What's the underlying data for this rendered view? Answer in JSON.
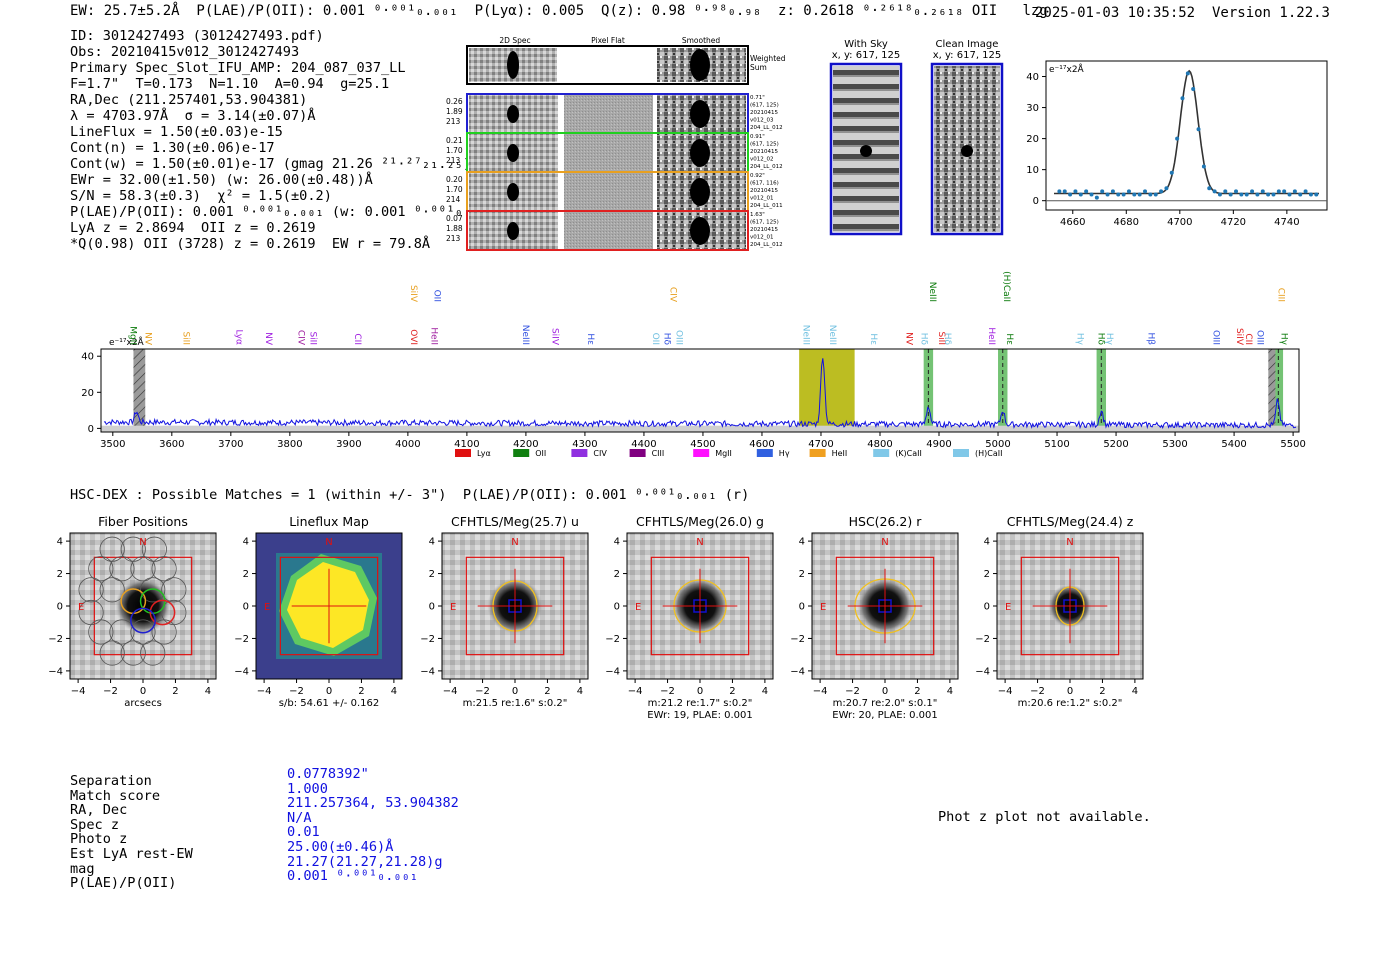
{
  "header": {
    "left": "EW: 25.7±5.2Å  P(LAE)/P(OII): 0.001 ⁰·⁰⁰¹₀.₀₀₁  P(Lyα): 0.005  Q(z): 0.98 ⁰·⁹⁸₀.₉₈  z: 0.2618 ⁰·²⁶¹⁸₀.₂₆₁₈ OII   lzg",
    "datetime": "2025-01-03 10:35:52",
    "version": "Version 1.22.3"
  },
  "info": {
    "lines": [
      "ID: 3012427493 (3012427493.pdf)",
      "Obs: 20210415v012_3012427493",
      "Primary Spec_Slot_IFU_AMP: 204_087_037_LL",
      "F=1.7\"  T=0.173  N=1.10  A=0.94  g=25.1",
      "RA,Dec (211.257401,53.904381)",
      "λ = 4703.97Å  σ = 3.14(±0.07)Å",
      "LineFlux = 1.50(±0.03)e-15",
      "Cont(n) = 1.30(±0.06)e-17",
      "Cont(w) = 1.50(±0.01)e-17 (gmag 21.26 ²¹·²⁷₂₁.₂₅)",
      "EWr = 32.00(±1.50) (w: 26.00(±0.48))Å",
      "S/N = 58.3(±0.3)  χ² = 1.5(±0.2)",
      "P(LAE)/P(OII): 0.001 ⁰·⁰⁰¹₀.₀₀₁ (w: 0.001 ⁰·⁰⁰¹₀.₀₀₁)",
      "LyA z = 2.8694  OII z = 0.2619",
      "*Q(0.98) OII (3728) z = 0.2619  EW r = 79.8Å"
    ]
  },
  "cutouts": {
    "headers": [
      "2D Spec",
      "Pixel Flat",
      "Smoothed"
    ],
    "weighted_label": "Weighted Sum",
    "rows": [
      {
        "color": "#2020d0",
        "left": [
          "0.26",
          "1.89",
          "213"
        ],
        "right": [
          "0.71\"",
          "(617, 125)",
          "20210415",
          "v012_03",
          "204_LL_012"
        ]
      },
      {
        "color": "#20d020",
        "left": [
          "0.21",
          "1.70",
          "213"
        ],
        "right": [
          "0.91\"",
          "(617, 125)",
          "20210415",
          "v012_02",
          "204_LL_012"
        ]
      },
      {
        "color": "#e8a020",
        "left": [
          "0.20",
          "1.70",
          "214"
        ],
        "right": [
          "0.92\"",
          "(617, 116)",
          "20210415",
          "v012_01",
          "204_LL_011"
        ]
      },
      {
        "color": "#e02020",
        "left": [
          "0.07",
          "1.88",
          "213"
        ],
        "right": [
          "1.63\"",
          "(617, 125)",
          "20210415",
          "v012_01",
          "204_LL_012"
        ]
      }
    ]
  },
  "sky_panels": {
    "with_sky": {
      "title": "With Sky",
      "coords": "x, y: 617, 125"
    },
    "clean": {
      "title": "Clean Image",
      "coords": "x, y: 617, 125"
    }
  },
  "zoom_chart": {
    "type": "scatter",
    "unit_label": "e⁻¹⁷x2Å",
    "xlim": [
      4650,
      4755
    ],
    "ylim": [
      -3,
      45
    ],
    "xticks": [
      4660,
      4680,
      4700,
      4720,
      4740
    ],
    "yticks": [
      0,
      10,
      20,
      30,
      40
    ],
    "points_x": [
      4655,
      4657,
      4659,
      4661,
      4663,
      4665,
      4667,
      4669,
      4671,
      4673,
      4675,
      4677,
      4679,
      4681,
      4683,
      4685,
      4687,
      4689,
      4691,
      4693,
      4695,
      4697,
      4699,
      4701,
      4703,
      4705,
      4707,
      4709,
      4711,
      4713,
      4715,
      4717,
      4719,
      4721,
      4723,
      4725,
      4727,
      4729,
      4731,
      4733,
      4735,
      4737,
      4739,
      4741,
      4743,
      4745,
      4747,
      4749,
      4751
    ],
    "points_y": [
      3,
      3,
      2,
      3,
      2,
      3,
      2,
      1,
      3,
      2,
      3,
      2,
      2,
      3,
      2,
      2,
      3,
      2,
      2,
      3,
      4,
      9,
      20,
      33,
      41,
      36,
      23,
      11,
      4,
      3,
      2,
      3,
      2,
      3,
      2,
      2,
      3,
      2,
      3,
      2,
      2,
      3,
      3,
      2,
      3,
      2,
      3,
      2,
      2
    ],
    "model_center": 4703.5,
    "model_sigma": 3.3,
    "model_amp": 39.5,
    "model_base": 2.3
  },
  "spectrum_chart": {
    "type": "line",
    "unit_label": "e⁻¹⁷x2Å",
    "xlim": [
      3480,
      5510
    ],
    "ylim": [
      -2,
      44
    ],
    "xticks": [
      3500,
      3600,
      3700,
      3800,
      3900,
      4000,
      4100,
      4200,
      4300,
      4400,
      4500,
      4600,
      4700,
      4800,
      4900,
      5000,
      5100,
      5200,
      5300,
      5400,
      5500
    ],
    "yticks": [
      0,
      20,
      40
    ],
    "peaks": [
      {
        "x": 4703,
        "amp": 38,
        "sigma": 3.3
      },
      {
        "x": 4882,
        "amp": 10,
        "sigma": 3.0
      },
      {
        "x": 5008,
        "amp": 8,
        "sigma": 3.0
      },
      {
        "x": 5175,
        "amp": 8,
        "sigma": 3.0
      },
      {
        "x": 5474,
        "amp": 14,
        "sigma": 3.0
      },
      {
        "x": 3540,
        "amp": 6,
        "sigma": 3.0
      }
    ],
    "continuum": 3.5,
    "highlight_band": [
      4663,
      4757
    ],
    "green_bands": [
      [
        4874,
        4890
      ],
      [
        5000,
        5016
      ],
      [
        5167,
        5183
      ],
      [
        5467,
        5483
      ]
    ],
    "gray_bands": [
      [
        3535,
        3555
      ],
      [
        5458,
        5470
      ]
    ],
    "line_labels": [
      {
        "x": 3530,
        "text": "MgII",
        "color": "#0a7a0a",
        "row": 0
      },
      {
        "x": 3555,
        "text": "NV",
        "color": "#e8a020",
        "row": 0
      },
      {
        "x": 3620,
        "text": "SiII",
        "color": "#e8a020",
        "row": 0
      },
      {
        "x": 3710,
        "text": "Lyα",
        "color": "#a020e0",
        "row": 0
      },
      {
        "x": 3760,
        "text": "NV",
        "color": "#a020e0",
        "row": 0
      },
      {
        "x": 3815,
        "text": "CIV",
        "color": "#a020a0",
        "row": 0
      },
      {
        "x": 3835,
        "text": "SiII",
        "color": "#a020e0",
        "row": 0
      },
      {
        "x": 3910,
        "text": "CII",
        "color": "#a020e0",
        "row": 0
      },
      {
        "x": 4005,
        "text": "OVI",
        "color": "#e02020",
        "row": 0
      },
      {
        "x": 4040,
        "text": "HeII",
        "color": "#a020a0",
        "row": 0
      },
      {
        "x": 4005,
        "text": "SiIV",
        "color": "#e8a020",
        "row": 1
      },
      {
        "x": 4045,
        "text": "OII",
        "color": "#3050e0",
        "row": 1
      },
      {
        "x": 4195,
        "text": "NeIII",
        "color": "#3050e0",
        "row": 0
      },
      {
        "x": 4245,
        "text": "SiIV",
        "color": "#a020e0",
        "row": 0
      },
      {
        "x": 4305,
        "text": "Hε",
        "color": "#3050e0",
        "row": 0
      },
      {
        "x": 4415,
        "text": "OII",
        "color": "#70c0e0",
        "row": 0
      },
      {
        "x": 4435,
        "text": "Hδ",
        "color": "#3050e0",
        "row": 0
      },
      {
        "x": 4455,
        "text": "OIII",
        "color": "#70c0e0",
        "row": 0
      },
      {
        "x": 4445,
        "text": "CIV",
        "color": "#e8a020",
        "row": 1
      },
      {
        "x": 4670,
        "text": "NeIII",
        "color": "#70c0e0",
        "row": 0
      },
      {
        "x": 4715,
        "text": "NeIII",
        "color": "#70c0e0",
        "row": 0
      },
      {
        "x": 4785,
        "text": "Hε",
        "color": "#70c0e0",
        "row": 0
      },
      {
        "x": 4845,
        "text": "NV",
        "color": "#e02020",
        "row": 0
      },
      {
        "x": 4870,
        "text": "Hδ",
        "color": "#70c0e0",
        "row": 0
      },
      {
        "x": 4900,
        "text": "SiII",
        "color": "#e02020",
        "row": 0
      },
      {
        "x": 4910,
        "text": "Hδ",
        "color": "#70c0e0",
        "row": 0
      },
      {
        "x": 4885,
        "text": "NeIII",
        "color": "#0a7a0a",
        "row": 1
      },
      {
        "x": 4985,
        "text": "HeII",
        "color": "#a020e0",
        "row": 0
      },
      {
        "x": 5015,
        "text": "Hε",
        "color": "#0a7a0a",
        "row": 0
      },
      {
        "x": 5010,
        "text": "(H)CaII",
        "color": "#0a7a0a",
        "row": 1
      },
      {
        "x": 5135,
        "text": "Hγ",
        "color": "#70c0e0",
        "row": 0
      },
      {
        "x": 5170,
        "text": "Hδ",
        "color": "#0a7a0a",
        "row": 0
      },
      {
        "x": 5185,
        "text": "Hγ",
        "color": "#70c0e0",
        "row": 0
      },
      {
        "x": 5255,
        "text": "Hβ",
        "color": "#3050e0",
        "row": 0
      },
      {
        "x": 5365,
        "text": "OIII",
        "color": "#3050e0",
        "row": 0
      },
      {
        "x": 5405,
        "text": "SiIV",
        "color": "#e02020",
        "row": 0
      },
      {
        "x": 5420,
        "text": "CII",
        "color": "#e02020",
        "row": 0
      },
      {
        "x": 5440,
        "text": "OIII",
        "color": "#3050e0",
        "row": 0
      },
      {
        "x": 5480,
        "text": "Hγ",
        "color": "#0a7a0a",
        "row": 0
      },
      {
        "x": 5475,
        "text": "CIII",
        "color": "#e8a020",
        "row": 1
      }
    ],
    "legend": [
      {
        "label": "Lyα",
        "color": "#e01010"
      },
      {
        "label": "OII",
        "color": "#108010"
      },
      {
        "label": "CIV",
        "color": "#9030e0"
      },
      {
        "label": "CIII",
        "color": "#800080"
      },
      {
        "label": "MgII",
        "color": "#ff10ff"
      },
      {
        "label": "Hγ",
        "color": "#3060e0"
      },
      {
        "label": "HeII",
        "color": "#f0a020"
      },
      {
        "label": "(K)CaII",
        "color": "#80c8e8"
      },
      {
        "label": "(H)CaII",
        "color": "#80c8e8"
      }
    ]
  },
  "match_line": "HSC-DEX : Possible Matches = 1 (within +/- 3\")  P(LAE)/P(OII): 0.001 ⁰·⁰⁰¹₀.₀₀₁ (r)",
  "imaging": {
    "xticks": [
      -4,
      -2,
      0,
      2,
      4
    ],
    "yticks": [
      4,
      2,
      0,
      -2,
      -4
    ],
    "north": "N",
    "east": "E",
    "panels": [
      {
        "title": "Fiber Positions",
        "caption1": "arcsecs",
        "caption2": "",
        "kind": "fiber"
      },
      {
        "title": "Lineflux Map",
        "caption1": "s/b: 54.61 +/- 0.162",
        "caption2": "",
        "kind": "flux"
      },
      {
        "title": "CFHTLS/Meg(25.7) u",
        "caption1": "m:21.5  re:1.6\"  s:0.2\"",
        "caption2": "",
        "kind": "u"
      },
      {
        "title": "CFHTLS/Meg(26.0) g",
        "caption1": "m:21.2  re:1.7\"  s:0.2\"",
        "caption2": "EWr: 19, PLAE: 0.001",
        "kind": "g"
      },
      {
        "title": "HSC(26.2) r",
        "caption1": "m:20.7  re:2.0\"  s:0.1\"",
        "caption2": "EWr: 20, PLAE: 0.001",
        "kind": "r"
      },
      {
        "title": "CFHTLS/Meg(24.4) z",
        "caption1": "m:20.6  re:1.2\"  s:0.2\"",
        "caption2": "",
        "kind": "z"
      }
    ]
  },
  "summary": {
    "labels": [
      "Separation",
      "Match score",
      "RA, Dec",
      "Spec z",
      "Photo z",
      "Est LyA rest-EW",
      "mag",
      "P(LAE)/P(OII)"
    ],
    "values": [
      "0.0778392\"",
      "1.000",
      "211.257364, 53.904382",
      "N/A",
      "0.01",
      "25.00(±0.46)Å",
      "21.27(21.27,21.28)g",
      "0.001 ⁰·⁰⁰¹₀.₀₀₁"
    ]
  },
  "photz_note": "Phot z plot not available."
}
